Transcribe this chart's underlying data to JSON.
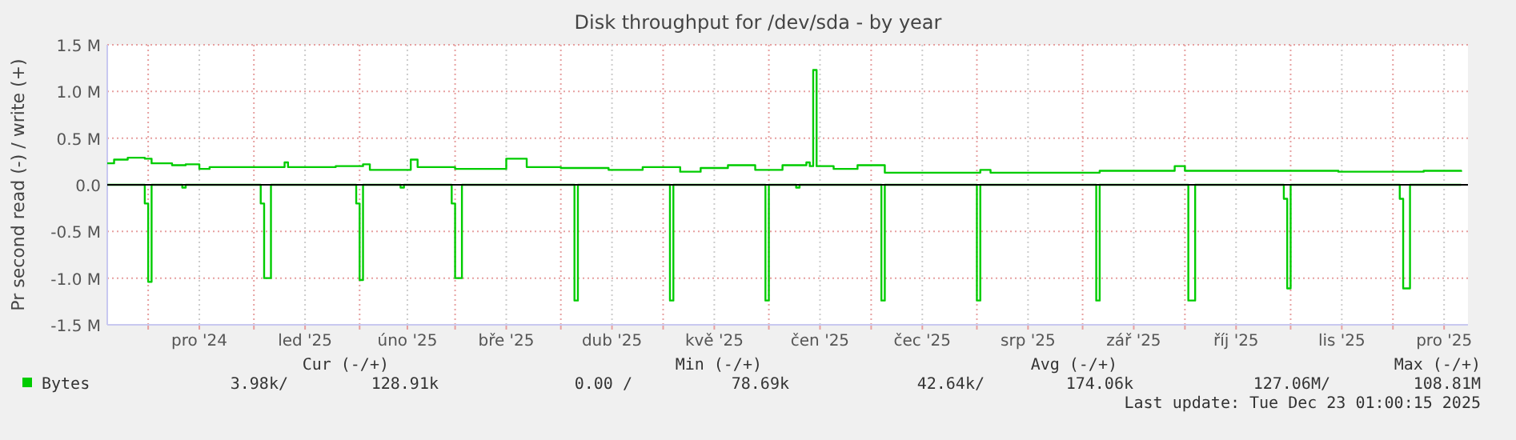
{
  "chart_data": {
    "type": "step",
    "title": "Disk throughput for /dev/sda - by year",
    "ylabel": "Pr second read (-) / write (+)",
    "xlim": [
      "2024-11-19",
      "2025-12-23"
    ],
    "ylim": [
      -1.5,
      1.5
    ],
    "yticks": [
      {
        "value": 1.5,
        "label": "1.5 M"
      },
      {
        "value": 1,
        "label": "1.0 M"
      },
      {
        "value": 0.5,
        "label": "0.5 M"
      },
      {
        "value": 0,
        "label": "0.0"
      },
      {
        "value": -0.5,
        "label": "-0.5 M"
      },
      {
        "value": -1,
        "label": "-1.0 M"
      },
      {
        "value": -1.5,
        "label": "-1.5 M"
      }
    ],
    "xticks": [
      {
        "value": "2024-12-01",
        "label": null
      },
      {
        "value": "2024-12-16",
        "label": "pro '24"
      },
      {
        "value": "2025-01-01",
        "label": null
      },
      {
        "value": "2025-01-16",
        "label": "led '25"
      },
      {
        "value": "2025-02-01",
        "label": null
      },
      {
        "value": "2025-02-15",
        "label": "úno '25"
      },
      {
        "value": "2025-03-01",
        "label": null
      },
      {
        "value": "2025-03-16",
        "label": "bře '25"
      },
      {
        "value": "2025-04-01",
        "label": null
      },
      {
        "value": "2025-04-16",
        "label": "dub '25"
      },
      {
        "value": "2025-05-01",
        "label": null
      },
      {
        "value": "2025-05-16",
        "label": "kvě '25"
      },
      {
        "value": "2025-06-01",
        "label": null
      },
      {
        "value": "2025-06-16",
        "label": "čen '25"
      },
      {
        "value": "2025-07-01",
        "label": null
      },
      {
        "value": "2025-07-16",
        "label": "čec '25"
      },
      {
        "value": "2025-08-01",
        "label": null
      },
      {
        "value": "2025-08-16",
        "label": "srp '25"
      },
      {
        "value": "2025-09-01",
        "label": null
      },
      {
        "value": "2025-09-16",
        "label": "zář '25"
      },
      {
        "value": "2025-10-01",
        "label": null
      },
      {
        "value": "2025-10-16",
        "label": "říj '25"
      },
      {
        "value": "2025-11-01",
        "label": null
      },
      {
        "value": "2025-11-16",
        "label": "lis '25"
      },
      {
        "value": "2025-12-01",
        "label": null
      },
      {
        "value": "2025-12-16",
        "label": "pro '25"
      }
    ],
    "grid": true,
    "legend": "bottom left",
    "ref_lines": [
      {
        "axis": "y",
        "value": 0,
        "color": "#000000"
      }
    ],
    "series": [
      {
        "name": "Bytes",
        "color": "#00cc00",
        "x": [
          "2024-11-19",
          "2024-11-21",
          "2024-11-25",
          "2024-11-30",
          "2024-12-02",
          "2024-12-08",
          "2024-12-12",
          "2024-12-16",
          "2024-12-19",
          "2025-01-02",
          "2025-01-10",
          "2025-01-11",
          "2025-01-25",
          "2025-02-02",
          "2025-02-04",
          "2025-02-16",
          "2025-02-18",
          "2025-03-01",
          "2025-03-13",
          "2025-03-16",
          "2025-03-22",
          "2025-04-01",
          "2025-04-15",
          "2025-04-25",
          "2025-05-06",
          "2025-05-12",
          "2025-05-20",
          "2025-05-28",
          "2025-06-05",
          "2025-06-12",
          "2025-06-13",
          "2025-06-14",
          "2025-06-15",
          "2025-06-20",
          "2025-06-27",
          "2025-07-05",
          "2025-07-20",
          "2025-08-01",
          "2025-08-02",
          "2025-08-05",
          "2025-09-06",
          "2025-09-28",
          "2025-10-01",
          "2025-10-20",
          "2025-11-15",
          "2025-12-10",
          "2025-12-21"
        ],
        "values": [
          0.23,
          0.27,
          0.29,
          0.28,
          0.23,
          0.21,
          0.22,
          0.17,
          0.19,
          0.19,
          0.24,
          0.19,
          0.2,
          0.22,
          0.16,
          0.27,
          0.19,
          0.17,
          0.17,
          0.28,
          0.19,
          0.18,
          0.16,
          0.19,
          0.14,
          0.18,
          0.21,
          0.16,
          0.21,
          0.24,
          0.2,
          1.23,
          0.2,
          0.17,
          0.21,
          0.13,
          0.13,
          0.13,
          0.16,
          0.13,
          0.15,
          0.2,
          0.15,
          0.15,
          0.14,
          0.15,
          0.14
        ]
      },
      {
        "color": "#00cc00",
        "x": [
          "2024-11-19",
          "2024-11-30",
          "2024-12-01",
          "2024-12-02",
          "2024-12-11",
          "2024-12-12",
          "2025-01-03",
          "2025-01-04",
          "2025-01-06",
          "2025-01-31",
          "2025-02-01",
          "2025-02-02",
          "2025-02-13",
          "2025-02-14",
          "2025-02-28",
          "2025-03-01",
          "2025-03-03",
          "2025-04-05",
          "2025-04-06",
          "2025-05-03",
          "2025-05-04",
          "2025-05-31",
          "2025-06-01",
          "2025-06-09",
          "2025-06-10",
          "2025-07-04",
          "2025-07-05",
          "2025-08-01",
          "2025-08-02",
          "2025-09-05",
          "2025-09-06",
          "2025-10-02",
          "2025-10-04",
          "2025-10-30",
          "2025-10-31",
          "2025-11-01",
          "2025-12-03",
          "2025-12-04",
          "2025-12-06",
          "2025-12-21"
        ],
        "values": [
          0,
          -0.2,
          -1.04,
          0,
          -0.03,
          0,
          -0.2,
          -1.0,
          0,
          -0.2,
          -1.02,
          0,
          -0.03,
          0,
          -0.2,
          -1.0,
          0,
          -1.24,
          0,
          -1.24,
          0,
          -1.24,
          0,
          -0.03,
          0,
          -1.24,
          0,
          -1.24,
          0,
          -1.24,
          0,
          -1.24,
          0,
          -0.15,
          -1.11,
          0,
          -0.15,
          -1.11,
          0,
          0
        ]
      }
    ],
    "annotations": [
      "Cur (-/+)",
      "Min (-/+)",
      "Avg (-/+)",
      "Max (-/+)",
      "3.98k/",
      "128.91k",
      "0.00 /",
      "78.69k",
      "42.64k/",
      "174.06k",
      "127.06M/",
      "108.81M",
      "Last update: Tue Dec 23 01:00:15 2025"
    ]
  }
}
